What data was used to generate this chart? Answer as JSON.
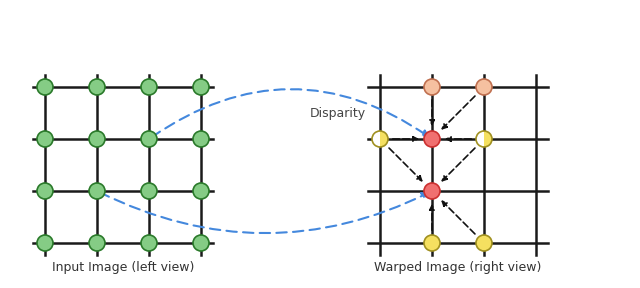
{
  "bg_color": "#ffffff",
  "grid_color": "#1a1a1a",
  "green_fill": "#85cc85",
  "green_edge": "#2a7a2a",
  "pink_fill": "#f07070",
  "pink_edge": "#cc3030",
  "peach_fill": "#f5c0a0",
  "peach_edge": "#c07050",
  "yellow_fill": "#f5e060",
  "yellow_edge": "#a09020",
  "half_fill": "#f5e060",
  "half_edge": "#a09020",
  "blue_dash": "#4488dd",
  "black_arrow": "#111111",
  "title_left": "Input Image (left view)",
  "title_right": "Warped Image (right view)",
  "disparity_label": "Disparity",
  "figsize": [
    6.4,
    2.88
  ],
  "dpi": 100
}
